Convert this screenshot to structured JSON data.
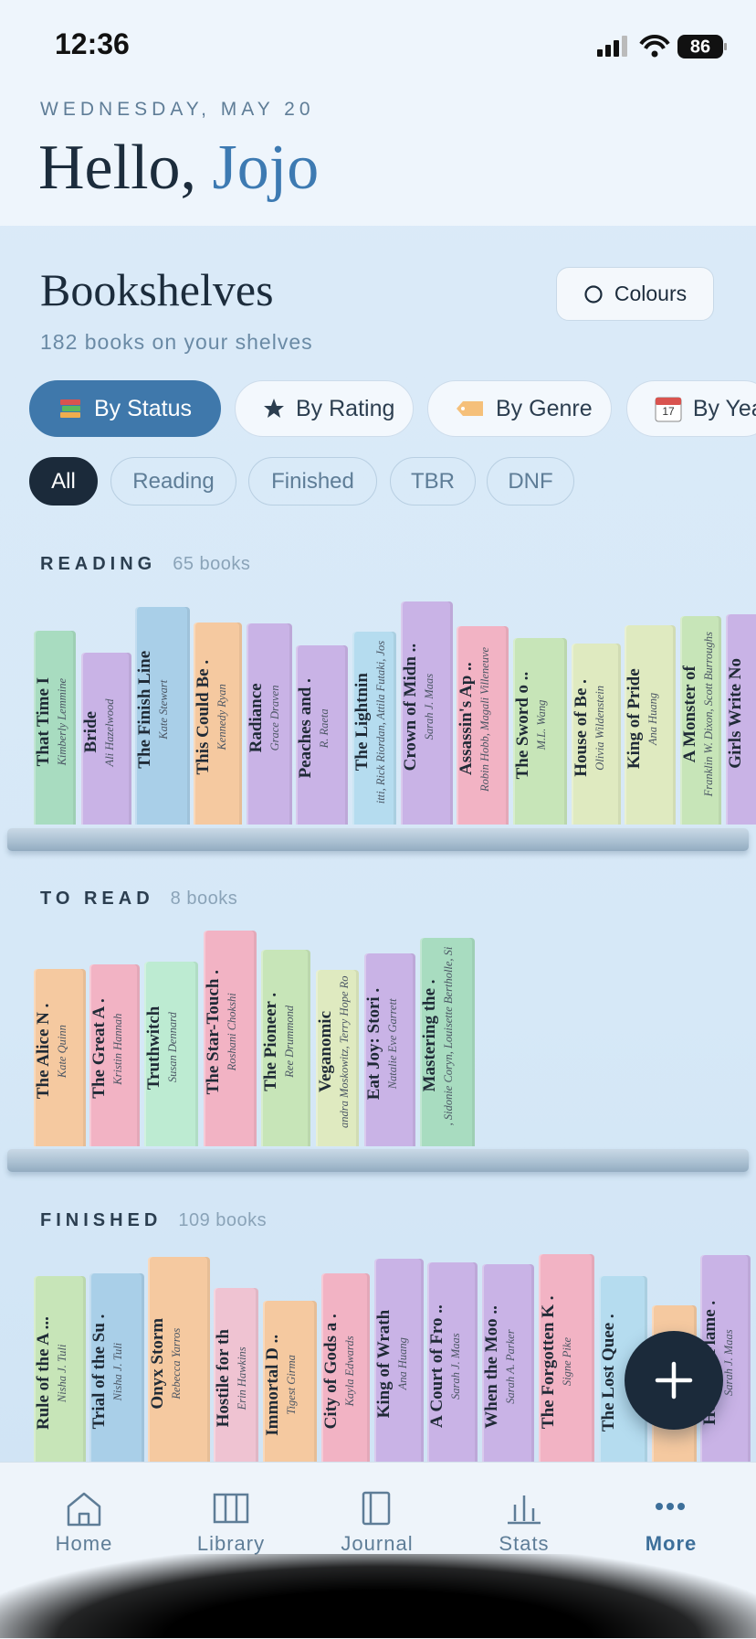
{
  "status_bar": {
    "time": "12:36",
    "battery": "86"
  },
  "header": {
    "date": "WEDNESDAY, MAY 20",
    "greeting": "Hello,",
    "name": "Jojo"
  },
  "bookshelves": {
    "title": "Bookshelves",
    "subtitle": "182 books on your shelves",
    "colours_button": "Colours"
  },
  "group_tabs": [
    "By Status",
    "By Rating",
    "By Genre",
    "By Year"
  ],
  "filters": [
    "All",
    "Reading",
    "Finished",
    "TBR",
    "DNF"
  ],
  "shelves": [
    {
      "label": "READING",
      "count": "65 books",
      "books": [
        {
          "title": "That Time I",
          "author": "Kimberly Lemmine"
        },
        {
          "title": "Bride",
          "author": "Ali Hazelwood"
        },
        {
          "title": "The Finish Line",
          "author": "Kate Stewart"
        },
        {
          "title": "This Could Be .",
          "author": "Kennedy Ryan"
        },
        {
          "title": "Radiance",
          "author": "Grace Draven"
        },
        {
          "title": "Peaches and .",
          "author": "R. Raeta"
        },
        {
          "title": "The Lightnin",
          "author": "itti, Rick Riordan, Attila Futaki, Jos"
        },
        {
          "title": "Crown of Midn ..",
          "author": "Sarah J. Maas"
        },
        {
          "title": "Assassin's Ap ..",
          "author": "Robin Hobb, Magali Villeneuve"
        },
        {
          "title": "The Sword o ..",
          "author": "M.L. Wang"
        },
        {
          "title": "House of Be .",
          "author": "Olivia Wildenstein"
        },
        {
          "title": "King of Pride",
          "author": "Ana Huang"
        },
        {
          "title": "A Monster of",
          "author": "Franklin W. Dixon, Scott Burroughs"
        },
        {
          "title": "Girls Write No"
        }
      ]
    },
    {
      "label": "TO READ",
      "count": "8 books",
      "books": [
        {
          "title": "The Alice N .",
          "author": "Kate Quinn"
        },
        {
          "title": "The Great A .",
          "author": "Kristin Hannah"
        },
        {
          "title": "Truthwitch",
          "author": "Susan Dennard"
        },
        {
          "title": "The Star-Touch .",
          "author": "Roshani Chokshi"
        },
        {
          "title": "The Pioneer .",
          "author": "Ree Drummond"
        },
        {
          "title": "Veganomic",
          "author": "andra Moskowitz, Terry Hope Ro"
        },
        {
          "title": "Eat Joy: Stori .",
          "author": "Natalie Eve Garrett"
        },
        {
          "title": "Mastering the .",
          "author": ", Sidonie Coryn, Louisette Bertholle, Si"
        }
      ]
    },
    {
      "label": "FINISHED",
      "count": "109 books",
      "books": [
        {
          "title": "Rule of the A ...",
          "author": "Nisha J. Tuli"
        },
        {
          "title": "Trial of the Su .",
          "author": "Nisha J. Tuli"
        },
        {
          "title": "Onyx Storm",
          "author": "Rebecca Yarros"
        },
        {
          "title": "Hostile for th",
          "author": "Erin Hawkins"
        },
        {
          "title": "Immortal D ..",
          "author": "Tigest Girma"
        },
        {
          "title": "City of Gods a .",
          "author": "Kayla Edwards"
        },
        {
          "title": "King of Wrath",
          "author": "Ana Huang"
        },
        {
          "title": "A Court of Fro ..",
          "author": "Sarah J. Maas"
        },
        {
          "title": "When the Moo ..",
          "author": "Sarah A. Parker"
        },
        {
          "title": "The Forgotten K .",
          "author": "Signe Pike"
        },
        {
          "title": "The Lost Quee ."
        },
        {
          "title": "H"
        },
        {
          "title": "House of Flame .",
          "author": "Sarah J. Maas"
        }
      ]
    }
  ],
  "tab_bar": [
    "Home",
    "Library",
    "Journal",
    "Stats",
    "More"
  ]
}
